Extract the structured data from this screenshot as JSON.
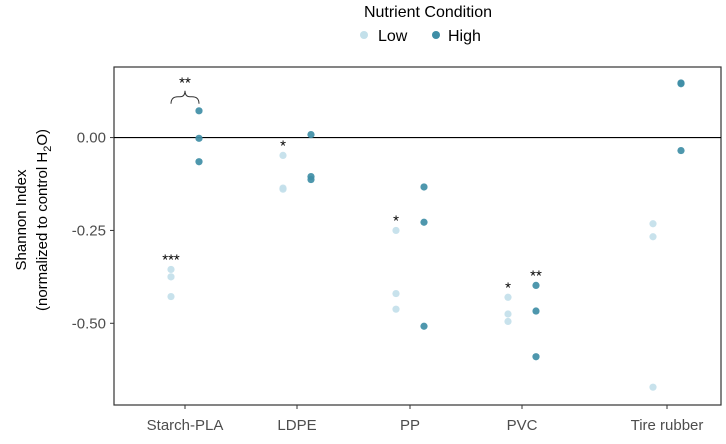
{
  "chart_data": {
    "type": "scatter",
    "legend": {
      "title": "Nutrient Condition",
      "placement": "top-center",
      "items": [
        {
          "name": "Low",
          "color": "#c3e0ea"
        },
        {
          "name": "High",
          "color": "#3f8ea6"
        }
      ]
    },
    "categories": [
      "Starch-PLA",
      "LDPE",
      "PP",
      "PVC",
      "Tire rubber"
    ],
    "ylabel_line1": "Shannon Index",
    "ylabel_line2_pre": "(normalized to control H",
    "ylabel_sub": "2",
    "ylabel_line2_post": "O)",
    "ylim": [
      -0.72,
      0.19
    ],
    "yticks": [
      {
        "value": 0.0,
        "label": "0.00"
      },
      {
        "value": -0.25,
        "label": "-0.25"
      },
      {
        "value": -0.5,
        "label": "-0.50"
      }
    ],
    "reference_line": 0,
    "grid": false,
    "series": [
      {
        "name": "Low",
        "color": "#c3e0ea",
        "values": [
          [
            -0.355,
            -0.375,
            -0.428
          ],
          [
            -0.048,
            -0.136,
            -0.139
          ],
          [
            -0.25,
            -0.42,
            -0.462
          ],
          [
            -0.43,
            -0.475,
            -0.495
          ],
          [
            -0.232,
            -0.267,
            -0.672
          ]
        ]
      },
      {
        "name": "High",
        "color": "#3f8ea6",
        "values": [
          [
            0.072,
            -0.002,
            -0.065
          ],
          [
            0.008,
            -0.105,
            -0.113
          ],
          [
            -0.133,
            -0.228,
            -0.508
          ],
          [
            -0.398,
            -0.467,
            -0.59
          ],
          [
            0.147,
            0.145,
            -0.035
          ]
        ]
      }
    ],
    "annotations": [
      {
        "text": "**",
        "category": "Starch-PLA",
        "group": "both",
        "value": 0.11,
        "bracket": true
      },
      {
        "text": "***",
        "category": "Starch-PLA",
        "group": "Low",
        "value": -0.355
      },
      {
        "text": "*",
        "category": "LDPE",
        "group": "Low",
        "value": -0.048
      },
      {
        "text": "*",
        "category": "PP",
        "group": "Low",
        "value": -0.25
      },
      {
        "text": "*",
        "category": "PVC",
        "group": "Low",
        "value": -0.43
      },
      {
        "text": "**",
        "category": "PVC",
        "group": "High",
        "value": -0.398
      }
    ]
  }
}
